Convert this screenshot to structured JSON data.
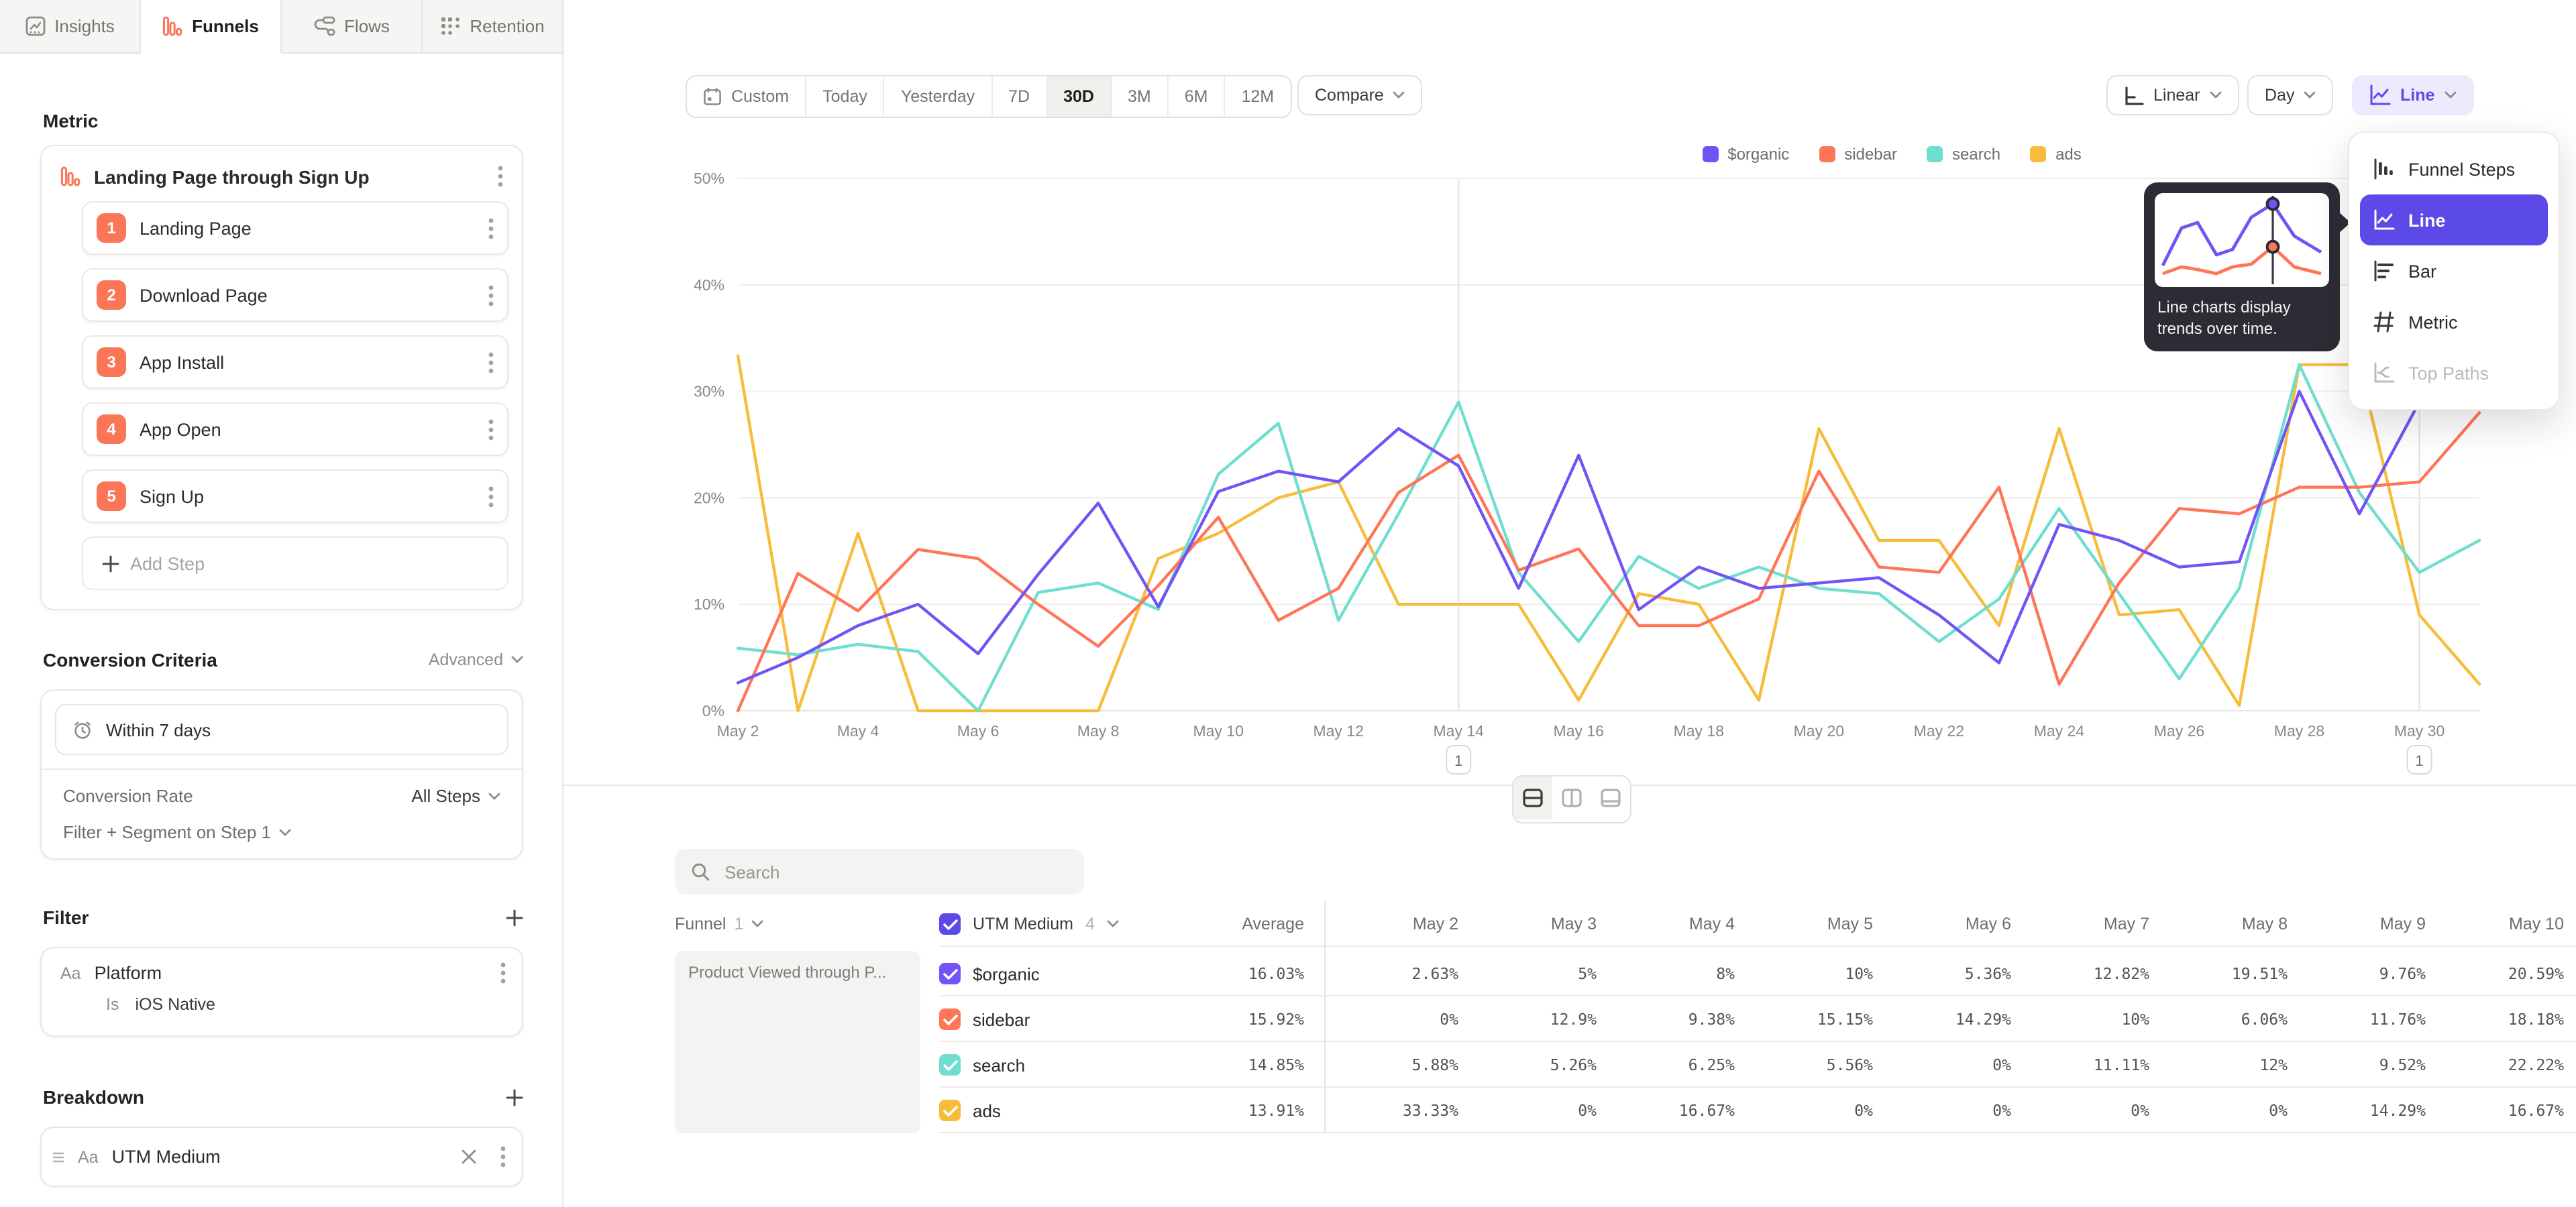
{
  "tabs": [
    {
      "label": "Insights",
      "icon": "insights-icon",
      "active": false
    },
    {
      "label": "Funnels",
      "icon": "funnels-icon",
      "active": true
    },
    {
      "label": "Flows",
      "icon": "flows-icon",
      "active": false
    },
    {
      "label": "Retention",
      "icon": "retention-icon",
      "active": false
    }
  ],
  "sidebar": {
    "metric_heading": "Metric",
    "funnel": {
      "title": "Landing Page through Sign Up",
      "steps": [
        {
          "num": "1",
          "label": "Landing Page"
        },
        {
          "num": "2",
          "label": "Download Page"
        },
        {
          "num": "3",
          "label": "App Install"
        },
        {
          "num": "4",
          "label": "App Open"
        },
        {
          "num": "5",
          "label": "Sign Up"
        }
      ],
      "add_step_label": "Add Step"
    },
    "conversion": {
      "heading": "Conversion Criteria",
      "advanced_label": "Advanced",
      "window_label": "Within 7 days",
      "rate_label": "Conversion Rate",
      "rate_value": "All Steps",
      "segment_label": "Filter + Segment on Step 1"
    },
    "filter": {
      "heading": "Filter",
      "type_badge": "Aa",
      "property": "Platform",
      "operator": "Is",
      "value": "iOS Native"
    },
    "breakdown": {
      "heading": "Breakdown",
      "type_badge": "Aa",
      "property": "UTM Medium"
    }
  },
  "toolbar": {
    "ranges": [
      {
        "label": "Custom",
        "icon": "calendar-icon",
        "active": false
      },
      {
        "label": "Today",
        "active": false
      },
      {
        "label": "Yesterday",
        "active": false
      },
      {
        "label": "7D",
        "active": false
      },
      {
        "label": "30D",
        "active": true
      },
      {
        "label": "3M",
        "active": false
      },
      {
        "label": "6M",
        "active": false
      },
      {
        "label": "12M",
        "active": false
      }
    ],
    "compare_label": "Compare",
    "scale_label": "Linear",
    "granularity_label": "Day",
    "chart_type_label": "Line"
  },
  "chart_menu": {
    "items": [
      {
        "label": "Funnel Steps",
        "icon": "funnel-steps-icon",
        "selected": false,
        "disabled": false
      },
      {
        "label": "Line",
        "icon": "line-chart-icon",
        "selected": true,
        "disabled": false
      },
      {
        "label": "Bar",
        "icon": "bar-chart-icon",
        "selected": false,
        "disabled": false
      },
      {
        "label": "Metric",
        "icon": "metric-icon",
        "selected": false,
        "disabled": false
      },
      {
        "label": "Top Paths",
        "icon": "top-paths-icon",
        "selected": false,
        "disabled": true
      }
    ]
  },
  "menu_tooltip": {
    "text": "Line charts display trends over time.",
    "preview": {
      "purple": [
        [
          6,
          54
        ],
        [
          20,
          26
        ],
        [
          32,
          22
        ],
        [
          46,
          46
        ],
        [
          58,
          42
        ],
        [
          72,
          18
        ],
        [
          88,
          8
        ],
        [
          104,
          32
        ],
        [
          124,
          44
        ]
      ],
      "red": [
        [
          6,
          60
        ],
        [
          20,
          55
        ],
        [
          32,
          57
        ],
        [
          46,
          60
        ],
        [
          58,
          55
        ],
        [
          72,
          53
        ],
        [
          88,
          40
        ],
        [
          104,
          55
        ],
        [
          124,
          60
        ]
      ],
      "crosshair_x": 88,
      "purple_dot_y": 8,
      "red_dot_y": 40
    }
  },
  "chart_data": {
    "type": "line",
    "title": "",
    "xlabel": "",
    "ylabel": "",
    "ylim": [
      0,
      50
    ],
    "grid": true,
    "legend_position": "top-center",
    "y_tick_labels": [
      "0%",
      "10%",
      "20%",
      "30%",
      "40%",
      "50%"
    ],
    "x_tick_labels": [
      "May 2",
      "May 4",
      "May 6",
      "May 8",
      "May 10",
      "May 12",
      "May 14",
      "May 16",
      "May 18",
      "May 20",
      "May 22",
      "May 24",
      "May 26",
      "May 28",
      "May 30"
    ],
    "x": [
      "May 2",
      "May 3",
      "May 4",
      "May 5",
      "May 6",
      "May 7",
      "May 8",
      "May 9",
      "May 10",
      "May 11",
      "May 12",
      "May 13",
      "May 14",
      "May 15",
      "May 16",
      "May 17",
      "May 18",
      "May 19",
      "May 20",
      "May 21",
      "May 22",
      "May 23",
      "May 24",
      "May 25",
      "May 26",
      "May 27",
      "May 28",
      "May 29",
      "May 30",
      "May 31"
    ],
    "series": [
      {
        "name": "$organic",
        "color": "#7253F6",
        "values": [
          2.63,
          5,
          8,
          10,
          5.36,
          12.82,
          19.51,
          9.76,
          20.59,
          22.5,
          21.5,
          26.5,
          23,
          11.5,
          24,
          9.5,
          13.5,
          11.5,
          12,
          12.5,
          9,
          4.5,
          17.5,
          16,
          13.5,
          14,
          30,
          18.5,
          29,
          32
        ]
      },
      {
        "name": "sidebar",
        "color": "#FF7557",
        "values": [
          0,
          12.9,
          9.38,
          15.15,
          14.29,
          10,
          6.06,
          11.76,
          18.18,
          8.5,
          11.5,
          20.5,
          24,
          13.2,
          15.2,
          8,
          8,
          10.5,
          22.5,
          13.5,
          13,
          21,
          2.5,
          12,
          19,
          18.5,
          21,
          21,
          21.5,
          28
        ]
      },
      {
        "name": "search",
        "color": "#6FDECF",
        "values": [
          5.88,
          5.26,
          6.25,
          5.56,
          0,
          11.11,
          12,
          9.52,
          22.22,
          27,
          8.5,
          18.5,
          29,
          13,
          6.5,
          14.5,
          11.5,
          13.5,
          11.5,
          11,
          6.5,
          10.5,
          19,
          11,
          3,
          11.5,
          32.5,
          20.5,
          13,
          16
        ]
      },
      {
        "name": "ads",
        "color": "#F8BC3B",
        "values": [
          33.33,
          0,
          16.67,
          0,
          0,
          0,
          0,
          14.29,
          16.67,
          20,
          21.5,
          10,
          10,
          10,
          1,
          11,
          10,
          1,
          26.5,
          16,
          16,
          8,
          26.5,
          9,
          9.5,
          0.5,
          32.5,
          32.5,
          9,
          2.5
        ]
      }
    ],
    "annotations": [
      {
        "label": "1",
        "x": "May 14"
      },
      {
        "label": "1",
        "x": "May 30"
      }
    ]
  },
  "table": {
    "search_placeholder": "Search",
    "funnel_col_label": "Funnel",
    "funnel_col_count": "1",
    "breakdown_col_label": "UTM Medium",
    "breakdown_col_count": "4",
    "average_label": "Average",
    "date_columns": [
      "May 2",
      "May 3",
      "May 4",
      "May 5",
      "May 6",
      "May 7",
      "May 8",
      "May 9",
      "May 10"
    ],
    "funnel_cell_text": "Product Viewed through P...",
    "rows": [
      {
        "name": "$organic",
        "color": "#7253F6",
        "average": "16.03%",
        "values": [
          "2.63%",
          "5%",
          "8%",
          "10%",
          "5.36%",
          "12.82%",
          "19.51%",
          "9.76%",
          "20.59%"
        ]
      },
      {
        "name": "sidebar",
        "color": "#FF7557",
        "average": "15.92%",
        "values": [
          "0%",
          "12.9%",
          "9.38%",
          "15.15%",
          "14.29%",
          "10%",
          "6.06%",
          "11.76%",
          "18.18%"
        ]
      },
      {
        "name": "search",
        "color": "#6FDECF",
        "average": "14.85%",
        "values": [
          "5.88%",
          "5.26%",
          "6.25%",
          "5.56%",
          "0%",
          "11.11%",
          "12%",
          "9.52%",
          "22.22%"
        ]
      },
      {
        "name": "ads",
        "color": "#F8BC3B",
        "average": "13.91%",
        "values": [
          "33.33%",
          "0%",
          "16.67%",
          "0%",
          "0%",
          "0%",
          "0%",
          "14.29%",
          "16.67%"
        ]
      }
    ]
  },
  "colors": {
    "accent_purple": "#5b49e8",
    "accent_orange": "#fb7557",
    "grid": "#f0eeeb",
    "annotation_line": "#e9e7e3"
  }
}
